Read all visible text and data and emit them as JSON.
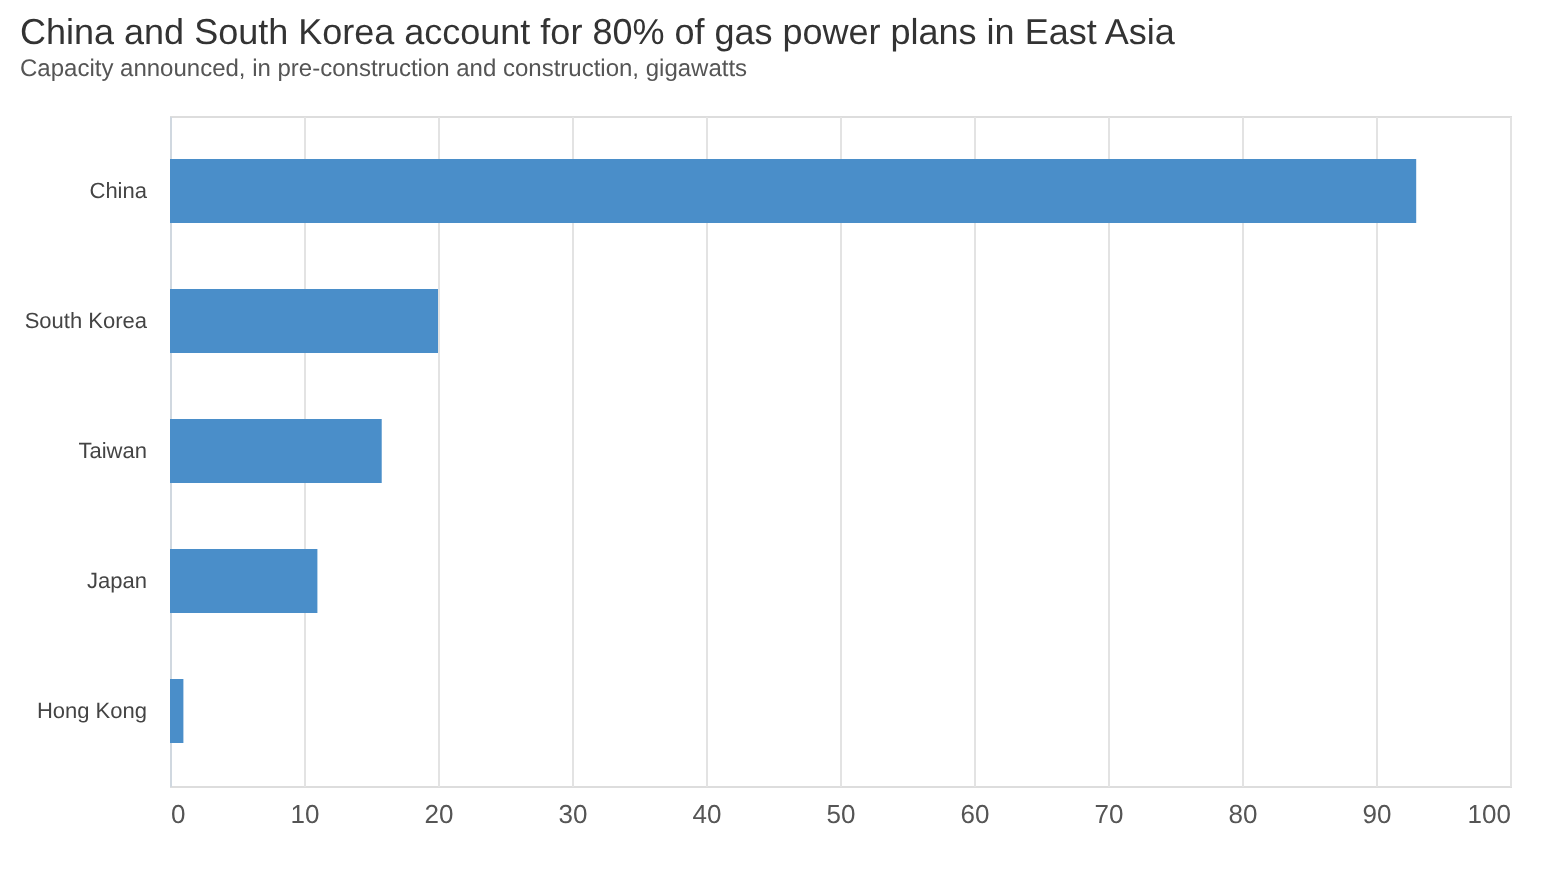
{
  "chart_data": {
    "type": "bar",
    "orientation": "horizontal",
    "title": "China and South Korea account for 80% of gas power plans in East Asia",
    "subtitle": "Capacity announced, in pre-construction and construction, gigawatts",
    "categories": [
      "China",
      "South Korea",
      "Taiwan",
      "Japan",
      "Hong Kong"
    ],
    "values": [
      93,
      20,
      15.8,
      11,
      1
    ],
    "color": "#4a8ec9",
    "xlim": [
      0,
      100
    ],
    "xticks": [
      0,
      10,
      20,
      30,
      40,
      50,
      60,
      70,
      80,
      90,
      100
    ],
    "grid": "x"
  }
}
